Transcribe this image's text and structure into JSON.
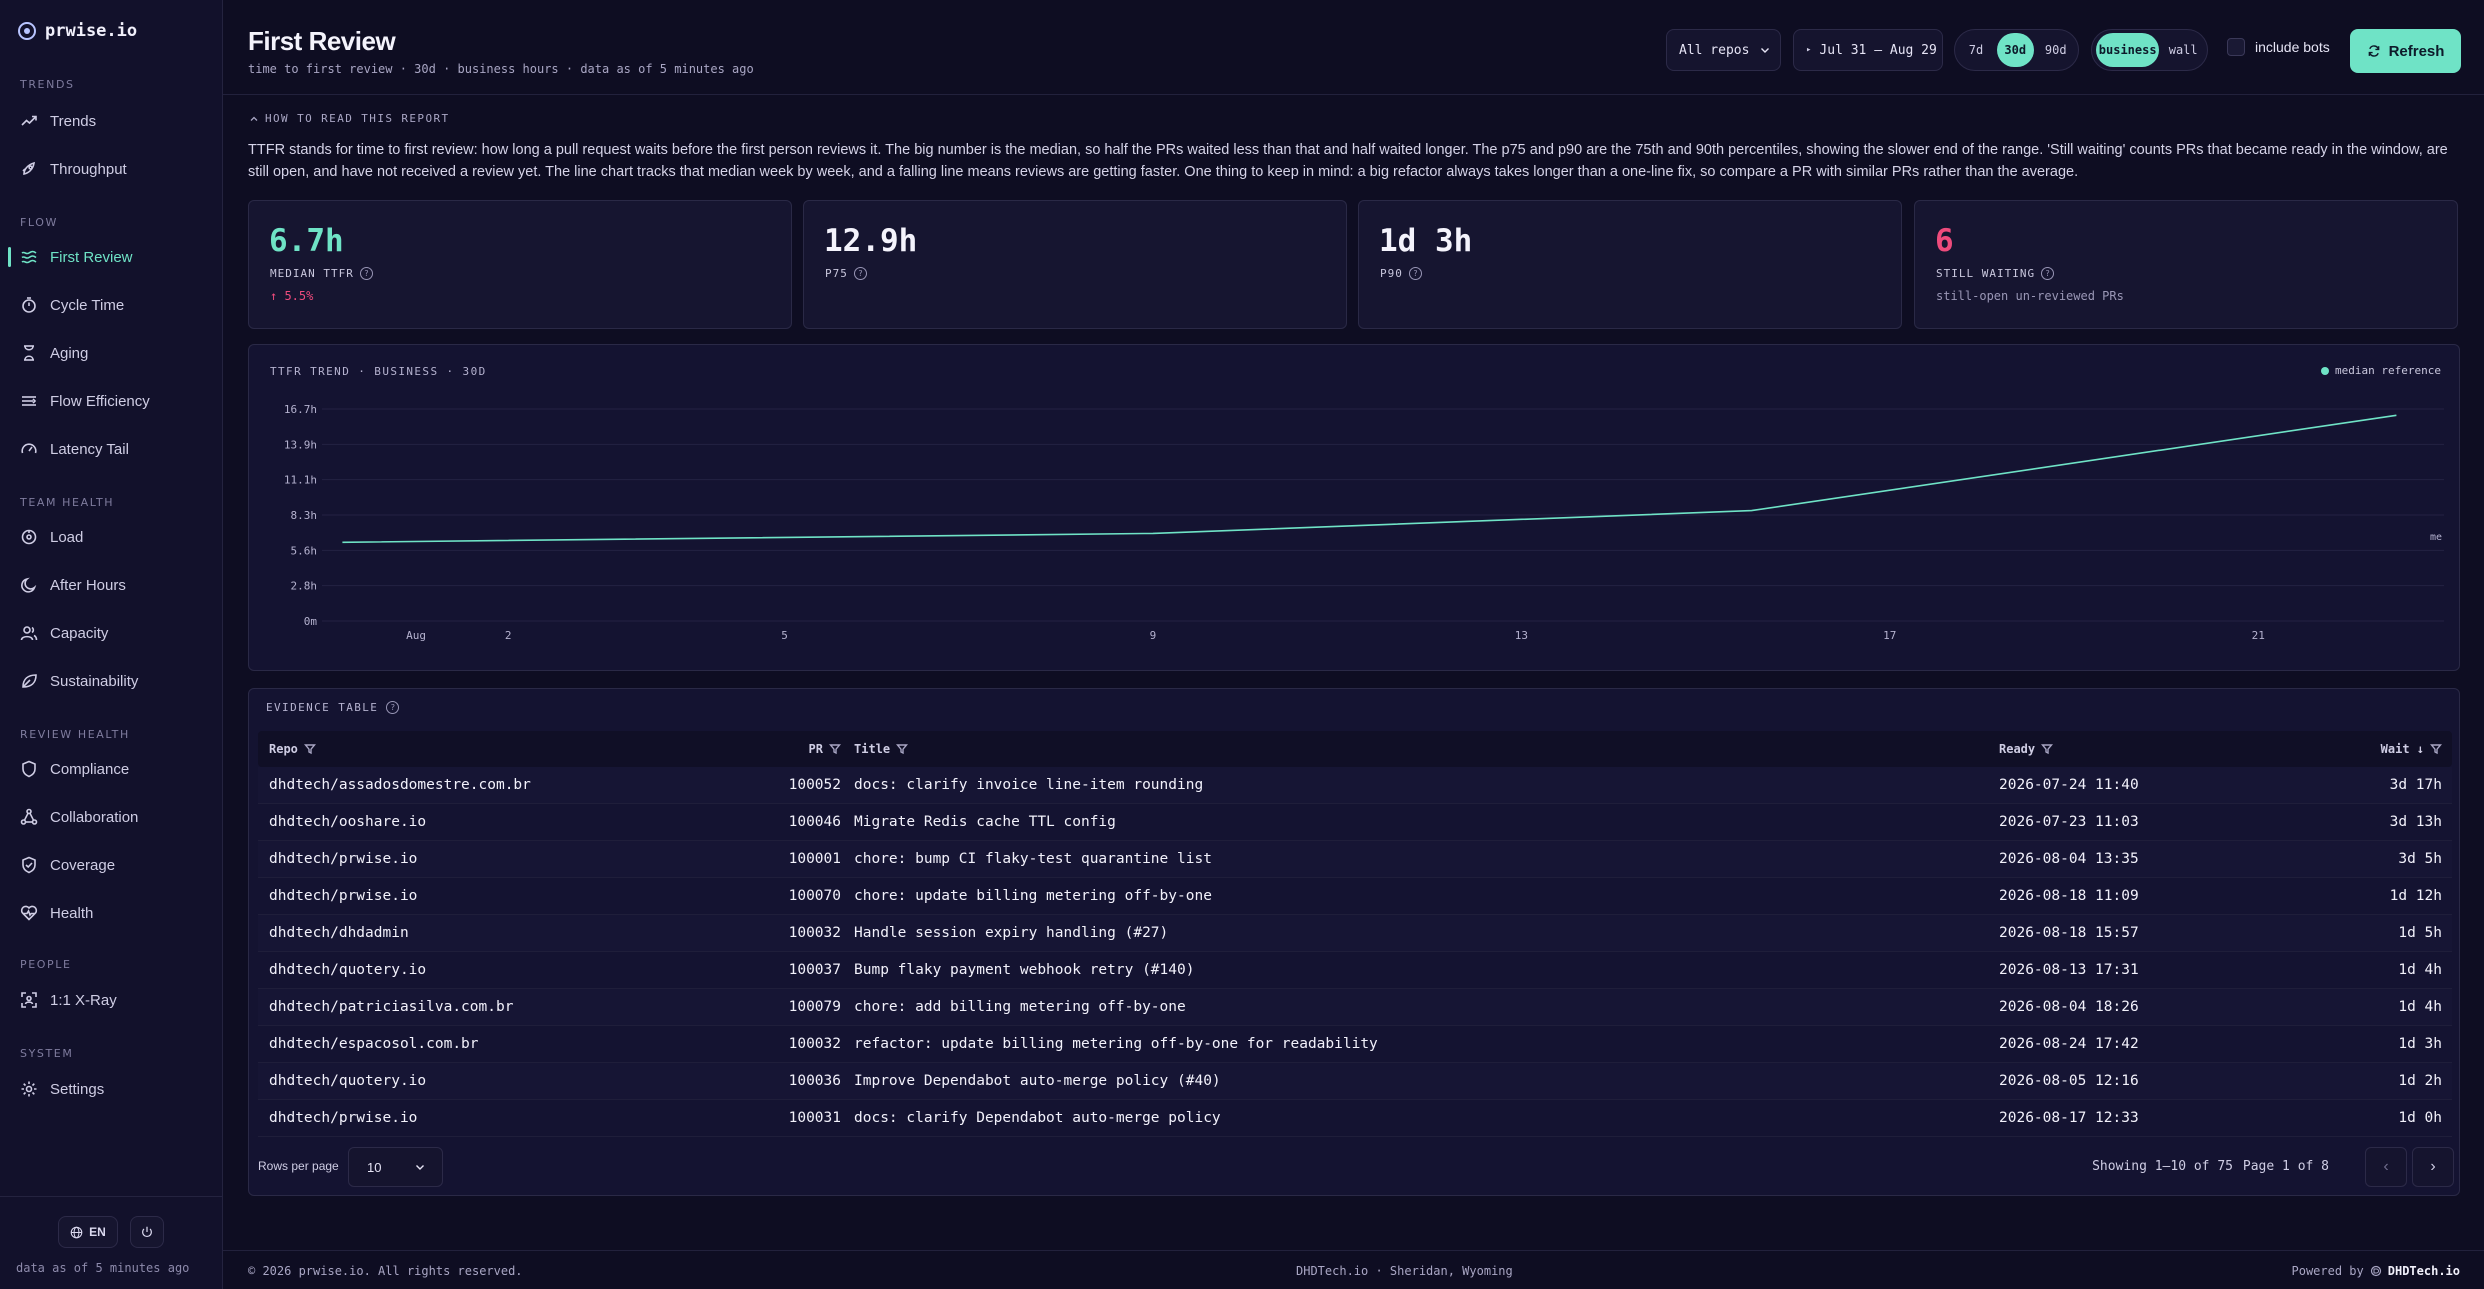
{
  "brand": {
    "name": "prwise.io"
  },
  "sidebar": {
    "sections": [
      {
        "title": "TRENDS",
        "items": [
          {
            "label": "Trends",
            "icon": "trend-icon"
          },
          {
            "label": "Throughput",
            "icon": "rocket-icon"
          }
        ]
      },
      {
        "title": "FLOW",
        "items": [
          {
            "label": "First Review",
            "icon": "waves-icon",
            "active": true
          },
          {
            "label": "Cycle Time",
            "icon": "stopwatch-icon"
          },
          {
            "label": "Aging",
            "icon": "hourglass-icon"
          },
          {
            "label": "Flow Efficiency",
            "icon": "flow-icon"
          },
          {
            "label": "Latency Tail",
            "icon": "gauge-icon"
          }
        ]
      },
      {
        "title": "TEAM HEALTH",
        "items": [
          {
            "label": "Load",
            "icon": "load-icon"
          },
          {
            "label": "After Hours",
            "icon": "moon-icon"
          },
          {
            "label": "Capacity",
            "icon": "users-icon"
          },
          {
            "label": "Sustainability",
            "icon": "leaf-icon"
          }
        ]
      },
      {
        "title": "REVIEW HEALTH",
        "items": [
          {
            "label": "Compliance",
            "icon": "shield-icon"
          },
          {
            "label": "Collaboration",
            "icon": "network-icon"
          },
          {
            "label": "Coverage",
            "icon": "shield-check-icon"
          },
          {
            "label": "Health",
            "icon": "heart-icon"
          }
        ]
      },
      {
        "title": "PEOPLE",
        "items": [
          {
            "label": "1:1 X-Ray",
            "icon": "scan-icon"
          }
        ]
      },
      {
        "title": "SYSTEM",
        "items": [
          {
            "label": "Settings",
            "icon": "gear-icon"
          }
        ]
      }
    ],
    "lang": "EN",
    "as_of": "data as of 5 minutes ago"
  },
  "header": {
    "title": "First Review",
    "subtitle": "time to first review · 30d · business hours · data as of 5 minutes ago",
    "repo_select": "All repos",
    "date_range": "Jul 31 – Aug 29",
    "ranges": [
      "7d",
      "30d",
      "90d"
    ],
    "range_selected": "30d",
    "modes": [
      "business",
      "wall"
    ],
    "mode_selected": "business",
    "include_bots": "include bots",
    "refresh": "Refresh"
  },
  "explainer": {
    "toggle": "HOW TO READ THIS REPORT",
    "text": "TTFR stands for time to first review: how long a pull request waits before the first person reviews it. The big number is the median, so half the PRs waited less than that and half waited longer. The p75 and p90 are the 75th and 90th percentiles, showing the slower end of the range. 'Still waiting' counts PRs that became ready in the window, are still open, and have not received a review yet. The line chart tracks that median week by week, and a falling line means reviews are getting faster. One thing to keep in mind: a big refactor always takes longer than a one-line fix, so compare a PR with similar PRs rather than the average."
  },
  "kpis": [
    {
      "value": "6.7h",
      "label": "MEDIAN TTFR",
      "sub": "↑ 5.5%",
      "value_color": "#6fe3c6",
      "sub_color": "#ee4b7c"
    },
    {
      "value": "12.9h",
      "label": "P75",
      "sub": "",
      "value_color": "#f4f3fc",
      "sub_color": "#a9a6c4"
    },
    {
      "value": "1d 3h",
      "label": "P90",
      "sub": "",
      "value_color": "#f4f3fc",
      "sub_color": "#a9a6c4"
    },
    {
      "value": "6",
      "label": "STILL WAITING",
      "sub": "still-open un-reviewed PRs",
      "value_color": "#ee4b7c",
      "sub_color": "#9a97b6"
    }
  ],
  "chart_data": {
    "type": "line",
    "title": "TTFR TREND · BUSINESS · 30D",
    "legend": "median reference",
    "ref_label": "me",
    "y_ticks": [
      "0m",
      "2.8h",
      "5.6h",
      "8.3h",
      "11.1h",
      "13.9h",
      "16.7h"
    ],
    "ylim": [
      0,
      16.7
    ],
    "y_unit": "h",
    "x_ticks": [
      {
        "label": "Aug",
        "day": 1
      },
      {
        "label": "2",
        "day": 2
      },
      {
        "label": "5",
        "day": 5
      },
      {
        "label": "9",
        "day": 9
      },
      {
        "label": "13",
        "day": 13
      },
      {
        "label": "17",
        "day": 17
      },
      {
        "label": "21",
        "day": 21
      }
    ],
    "series": [
      {
        "values": [
          {
            "day": 0.2,
            "value": 6.2
          },
          {
            "day": 9.0,
            "value": 6.9
          },
          {
            "day": 15.5,
            "value": 8.7
          },
          {
            "day": 22.5,
            "value": 16.2
          }
        ]
      }
    ],
    "xlim": [
      0,
      22.8
    ],
    "color": "#6fe3c6"
  },
  "evidence": {
    "title": "EVIDENCE TABLE",
    "columns": {
      "repo": "Repo",
      "pr": "PR",
      "title": "Title",
      "ready": "Ready",
      "wait": "Wait ↓"
    },
    "rows": [
      {
        "repo": "dhdtech/assadosdomestre.com.br",
        "pr": "100052",
        "title": "docs: clarify invoice line-item rounding",
        "ready": "2026-07-24 11:40",
        "wait": "3d 17h"
      },
      {
        "repo": "dhdtech/ooshare.io",
        "pr": "100046",
        "title": "Migrate Redis cache TTL config",
        "ready": "2026-07-23 11:03",
        "wait": "3d 13h"
      },
      {
        "repo": "dhdtech/prwise.io",
        "pr": "100001",
        "title": "chore: bump CI flaky-test quarantine list",
        "ready": "2026-08-04 13:35",
        "wait": "3d 5h"
      },
      {
        "repo": "dhdtech/prwise.io",
        "pr": "100070",
        "title": "chore: update billing metering off-by-one",
        "ready": "2026-08-18 11:09",
        "wait": "1d 12h"
      },
      {
        "repo": "dhdtech/dhdadmin",
        "pr": "100032",
        "title": "Handle session expiry handling (#27)",
        "ready": "2026-08-18 15:57",
        "wait": "1d 5h"
      },
      {
        "repo": "dhdtech/quotery.io",
        "pr": "100037",
        "title": "Bump flaky payment webhook retry (#140)",
        "ready": "2026-08-13 17:31",
        "wait": "1d 4h"
      },
      {
        "repo": "dhdtech/patriciasilva.com.br",
        "pr": "100079",
        "title": "chore: add billing metering off-by-one",
        "ready": "2026-08-04 18:26",
        "wait": "1d 4h"
      },
      {
        "repo": "dhdtech/espacosol.com.br",
        "pr": "100032",
        "title": "refactor: update billing metering off-by-one for readability",
        "ready": "2026-08-24 17:42",
        "wait": "1d 3h"
      },
      {
        "repo": "dhdtech/quotery.io",
        "pr": "100036",
        "title": "Improve Dependabot auto-merge policy (#40)",
        "ready": "2026-08-05 12:16",
        "wait": "1d 2h"
      },
      {
        "repo": "dhdtech/prwise.io",
        "pr": "100031",
        "title": "docs: clarify Dependabot auto-merge policy",
        "ready": "2026-08-17 12:33",
        "wait": "1d 0h"
      }
    ],
    "rows_per_page_label": "Rows per page",
    "rows_per_page": "10",
    "showing": "Showing 1–10 of 75",
    "page": "Page 1 of 8"
  },
  "footer": {
    "copyright": "© 2026 prwise.io. All rights reserved.",
    "location": "DHDTech.io · Sheridan, Wyoming",
    "powered_by": "Powered by",
    "powered_brand": "DHDTech.io"
  }
}
